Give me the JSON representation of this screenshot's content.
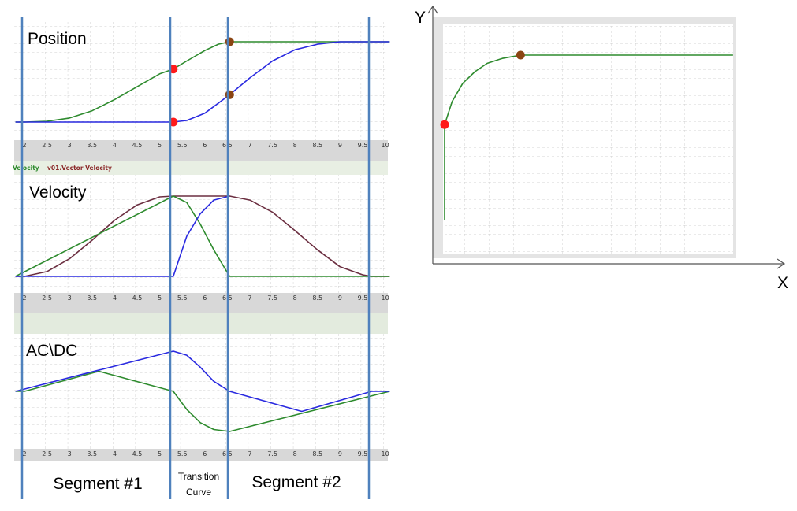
{
  "chart_data": [
    {
      "type": "line",
      "title": "Position",
      "x_ticks": [
        "2",
        "2.5",
        "3",
        "3.5",
        "4",
        "4.5",
        "5",
        "5.5",
        "6",
        "6.5",
        "7",
        "7.5",
        "8",
        "8.5",
        "9",
        "9.5",
        "10"
      ],
      "series": [
        {
          "color": "#2e8b2e",
          "x": [
            1.8,
            2.0,
            2.5,
            3.0,
            3.5,
            4.0,
            4.5,
            5.0,
            5.3,
            5.6,
            6.0,
            6.3,
            6.55,
            10.1
          ],
          "y": [
            0,
            0,
            0.01,
            0.05,
            0.14,
            0.28,
            0.44,
            0.6,
            0.66,
            0.76,
            0.89,
            0.97,
            1,
            1
          ]
        },
        {
          "color": "#2a2ae0",
          "x": [
            1.8,
            5.3,
            5.6,
            6.0,
            6.55,
            7.0,
            7.5,
            8.0,
            8.5,
            9.0,
            9.5,
            10.1
          ],
          "y": [
            0,
            0,
            0.02,
            0.11,
            0.34,
            0.55,
            0.76,
            0.9,
            0.97,
            1,
            1,
            1
          ]
        }
      ],
      "markers": [
        {
          "color": "#ff1a1a",
          "x": 5.3,
          "y": 0.66
        },
        {
          "color": "#ff1a1a",
          "x": 5.3,
          "y": 0
        },
        {
          "color": "#8b4513",
          "x": 6.55,
          "y": 1
        },
        {
          "color": "#8b4513",
          "x": 6.55,
          "y": 0.34
        }
      ]
    },
    {
      "type": "line",
      "title": "Velocity",
      "legend": [
        {
          "label": "Velocity",
          "color": "#2e8b2e"
        },
        {
          "label": "v01.Vector Velocity",
          "color": "#8b2a2a"
        }
      ],
      "x_ticks": [
        "2",
        "2.5",
        "3",
        "3.5",
        "4",
        "4.5",
        "5",
        "5.5",
        "6",
        "6.5",
        "7",
        "7.5",
        "8",
        "8.5",
        "9",
        "9.5",
        "10"
      ],
      "series": [
        {
          "color": "#6b2e40",
          "x": [
            1.8,
            2.0,
            2.5,
            3.0,
            3.5,
            4.0,
            4.5,
            5.0,
            5.3,
            6.55,
            7.0,
            7.5,
            8.0,
            8.5,
            9.0,
            9.5,
            9.7,
            10.1
          ],
          "y": [
            0,
            0,
            0.06,
            0.22,
            0.45,
            0.7,
            0.89,
            0.99,
            1,
            1,
            0.95,
            0.8,
            0.57,
            0.33,
            0.12,
            0.02,
            0,
            0
          ]
        },
        {
          "color": "#2e8b2e",
          "x": [
            1.8,
            5.3,
            5.6,
            5.9,
            6.2,
            6.55,
            10.1
          ],
          "y": [
            0,
            1,
            0.92,
            0.65,
            0.33,
            0,
            0
          ]
        },
        {
          "color": "#2a2ae0",
          "x": [
            1.8,
            5.3,
            5.6,
            5.9,
            6.2,
            6.55
          ],
          "y": [
            0,
            0,
            0.5,
            0.78,
            0.95,
            1
          ]
        }
      ]
    },
    {
      "type": "line",
      "title": "AC\\DC",
      "x_ticks": [
        "2",
        "2.5",
        "3",
        "3.5",
        "4",
        "4.5",
        "5",
        "5.5",
        "6",
        "6.5",
        "7",
        "7.5",
        "8",
        "8.5",
        "9",
        "9.5",
        "10"
      ],
      "series": [
        {
          "color": "#2e8b2e",
          "x": [
            1.8,
            2.0,
            3.65,
            5.3,
            5.6,
            5.9,
            6.2,
            6.55,
            10.1
          ],
          "y": [
            0,
            0,
            0.5,
            0,
            -0.45,
            -0.78,
            -0.95,
            -1,
            0
          ]
        },
        {
          "color": "#2a2ae0",
          "x": [
            1.8,
            5.3,
            5.6,
            5.9,
            6.2,
            6.55,
            8.15,
            9.7,
            10.1
          ],
          "y": [
            0,
            1,
            0.9,
            0.6,
            0.25,
            0,
            -0.5,
            0,
            0
          ]
        }
      ]
    },
    {
      "type": "line",
      "xlabel": "X",
      "ylabel": "Y",
      "series": [
        {
          "color": "#2e8b2e",
          "x": [
            0,
            0,
            0.05,
            0.12,
            0.2,
            0.28,
            0.38,
            0.5,
            1.9
          ],
          "y": [
            0,
            0.58,
            0.72,
            0.83,
            0.9,
            0.95,
            0.98,
            1,
            1
          ]
        }
      ],
      "markers": [
        {
          "color": "#ff1a1a",
          "x": 0,
          "y": 0.58
        },
        {
          "color": "#8b4513",
          "x": 0.5,
          "y": 1
        }
      ]
    }
  ],
  "segments": {
    "segment1": "Segment #1",
    "transition_line1": "Transition",
    "transition_line2": "Curve",
    "segment2": "Segment #2"
  }
}
